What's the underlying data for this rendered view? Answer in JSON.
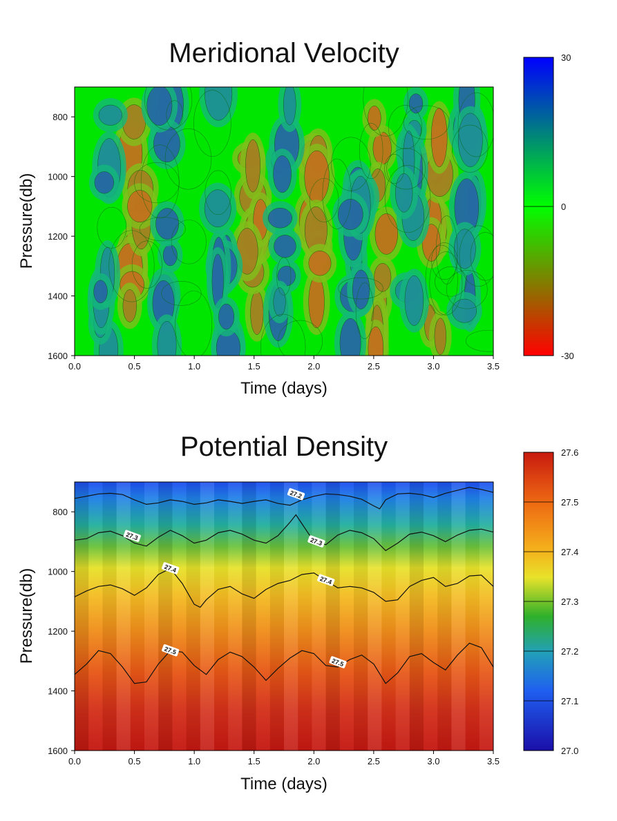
{
  "chart_data": [
    {
      "type": "heatmap",
      "title": "Meridional Velocity",
      "xlabel": "Time (days)",
      "ylabel": "Pressure(db)",
      "xlim": [
        0.0,
        3.5
      ],
      "ylim": [
        1600,
        700
      ],
      "x_ticks": [
        "0.0",
        "0.5",
        "1.0",
        "1.5",
        "2.0",
        "2.5",
        "3.0",
        "3.5"
      ],
      "y_ticks": [
        "800",
        "1000",
        "1200",
        "1400",
        "1600"
      ],
      "colorbar": {
        "range": [
          -30,
          30
        ],
        "ticks": [
          "30",
          "0",
          "-30"
        ],
        "colors": [
          "#ff0000",
          "#00ff00",
          "#0000ff"
        ]
      },
      "features": {
        "red_bands_days": [
          0.5,
          1.5,
          2.0,
          2.55,
          3.0
        ],
        "blue_bands_days": [
          0.25,
          0.75,
          1.25,
          1.75,
          2.35,
          2.8,
          3.3
        ]
      }
    },
    {
      "type": "heatmap",
      "title": "Potential Density",
      "xlabel": "Time (days)",
      "ylabel": "Pressure(db)",
      "xlim": [
        0.0,
        3.5
      ],
      "ylim": [
        1600,
        700
      ],
      "x_ticks": [
        "0.0",
        "0.5",
        "1.0",
        "1.5",
        "2.0",
        "2.5",
        "3.0",
        "3.5"
      ],
      "y_ticks": [
        "800",
        "1000",
        "1200",
        "1400",
        "1600"
      ],
      "colorbar": {
        "range": [
          27.0,
          27.6
        ],
        "ticks": [
          "27.6",
          "27.5",
          "27.4",
          "27.3",
          "27.2",
          "27.1",
          "27.0"
        ],
        "colors": [
          "#1a0fa8",
          "#1f5ff0",
          "#22a7b0",
          "#2fb02a",
          "#e8e22a",
          "#f08a1a",
          "#c81a10"
        ]
      },
      "contours": [
        {
          "label": "27.2",
          "t": [
            0.0,
            0.1,
            0.2,
            0.3,
            0.4,
            0.5,
            0.6,
            0.7,
            0.8,
            0.9,
            1.0,
            1.1,
            1.2,
            1.3,
            1.4,
            1.5,
            1.6,
            1.7,
            1.8,
            1.9,
            2.0,
            2.1,
            2.2,
            2.3,
            2.4,
            2.5,
            2.55,
            2.6,
            2.7,
            2.8,
            2.9,
            3.0,
            3.1,
            3.2,
            3.3,
            3.4,
            3.5
          ],
          "p": [
            755,
            748,
            740,
            738,
            742,
            760,
            775,
            770,
            760,
            765,
            775,
            770,
            760,
            765,
            772,
            765,
            760,
            772,
            778,
            760,
            748,
            740,
            742,
            748,
            758,
            780,
            790,
            760,
            740,
            738,
            742,
            752,
            738,
            728,
            718,
            725,
            735
          ]
        },
        {
          "label": "27.3",
          "t": [
            0.0,
            0.1,
            0.2,
            0.3,
            0.4,
            0.5,
            0.6,
            0.7,
            0.8,
            0.9,
            1.0,
            1.1,
            1.2,
            1.3,
            1.4,
            1.5,
            1.6,
            1.7,
            1.8,
            1.85,
            1.9,
            2.0,
            2.1,
            2.2,
            2.3,
            2.4,
            2.5,
            2.6,
            2.7,
            2.8,
            2.9,
            3.0,
            3.1,
            3.2,
            3.3,
            3.4,
            3.5
          ],
          "p": [
            895,
            890,
            870,
            865,
            880,
            905,
            915,
            885,
            862,
            880,
            905,
            895,
            870,
            862,
            875,
            895,
            905,
            880,
            835,
            810,
            840,
            900,
            910,
            878,
            862,
            870,
            890,
            930,
            905,
            875,
            868,
            880,
            900,
            878,
            862,
            858,
            868
          ]
        },
        {
          "label": "27.4",
          "t": [
            0.0,
            0.1,
            0.2,
            0.3,
            0.4,
            0.5,
            0.6,
            0.7,
            0.8,
            0.9,
            1.0,
            1.05,
            1.1,
            1.2,
            1.3,
            1.4,
            1.5,
            1.6,
            1.7,
            1.8,
            1.9,
            2.0,
            2.1,
            2.2,
            2.3,
            2.4,
            2.5,
            2.6,
            2.7,
            2.8,
            2.9,
            3.0,
            3.1,
            3.2,
            3.3,
            3.4,
            3.5
          ],
          "p": [
            1085,
            1065,
            1050,
            1045,
            1058,
            1080,
            1055,
            1010,
            990,
            1040,
            1110,
            1120,
            1095,
            1060,
            1050,
            1075,
            1090,
            1060,
            1040,
            1030,
            1010,
            1005,
            1030,
            1055,
            1050,
            1055,
            1070,
            1100,
            1095,
            1050,
            1030,
            1020,
            1050,
            1040,
            1015,
            1012,
            1050
          ]
        },
        {
          "label": "27.5",
          "t": [
            0.0,
            0.1,
            0.2,
            0.3,
            0.4,
            0.5,
            0.6,
            0.7,
            0.8,
            0.9,
            1.0,
            1.1,
            1.2,
            1.3,
            1.4,
            1.5,
            1.6,
            1.7,
            1.8,
            1.9,
            2.0,
            2.1,
            2.2,
            2.3,
            2.4,
            2.5,
            2.6,
            2.7,
            2.8,
            2.9,
            3.0,
            3.1,
            3.2,
            3.3,
            3.4,
            3.5
          ],
          "p": [
            1345,
            1310,
            1265,
            1275,
            1320,
            1375,
            1370,
            1310,
            1265,
            1270,
            1315,
            1345,
            1295,
            1270,
            1285,
            1320,
            1365,
            1325,
            1290,
            1265,
            1275,
            1315,
            1320,
            1295,
            1280,
            1310,
            1375,
            1340,
            1285,
            1275,
            1305,
            1330,
            1280,
            1240,
            1255,
            1320
          ]
        }
      ],
      "contour_labels": [
        {
          "text": "27.2",
          "t": 1.85,
          "p": 742
        },
        {
          "text": "27.3",
          "t": 0.48,
          "p": 882
        },
        {
          "text": "27.3",
          "t": 2.02,
          "p": 900
        },
        {
          "text": "27.4",
          "t": 0.8,
          "p": 990
        },
        {
          "text": "27.4",
          "t": 2.1,
          "p": 1030
        },
        {
          "text": "27.5",
          "t": 0.8,
          "p": 1265
        },
        {
          "text": "27.5",
          "t": 2.2,
          "p": 1305
        }
      ]
    }
  ]
}
